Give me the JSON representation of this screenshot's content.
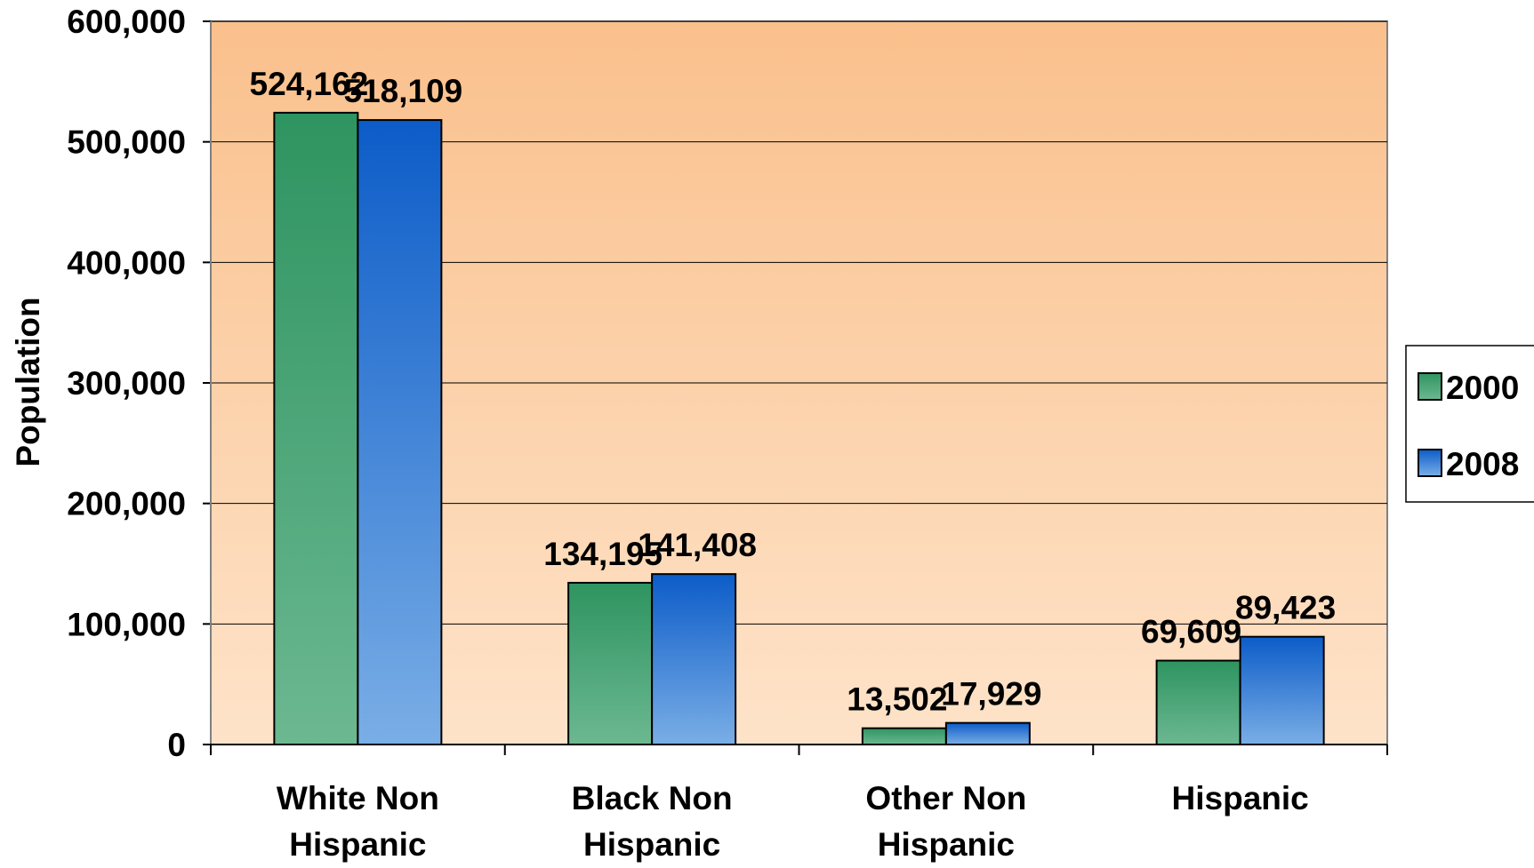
{
  "chart_data": {
    "type": "bar",
    "title": "",
    "xlabel": "",
    "ylabel": "Population",
    "ylim": [
      0,
      600000
    ],
    "yticks": [
      0,
      100000,
      200000,
      300000,
      400000,
      500000,
      600000
    ],
    "ytick_labels": [
      "0",
      "100,000",
      "200,000",
      "300,000",
      "400,000",
      "500,000",
      "600,000"
    ],
    "grid": "horizontal",
    "legend_position": "right",
    "categories": [
      [
        "White Non",
        "Hispanic"
      ],
      [
        "Black Non",
        "Hispanic"
      ],
      [
        "Other Non",
        "Hispanic"
      ],
      [
        "Hispanic"
      ]
    ],
    "series": [
      {
        "name": "2000",
        "values": [
          524162,
          134195,
          13502,
          69609
        ],
        "labels": [
          "524,162",
          "134,195",
          "13,502",
          "69,609"
        ],
        "color_top": "#2e9460",
        "color_bottom": "#6cb891"
      },
      {
        "name": "2008",
        "values": [
          518109,
          141408,
          17929,
          89423
        ],
        "labels": [
          "518,109",
          "141,408",
          "17,929",
          "89,423"
        ],
        "color_top": "#0c5cc8",
        "color_bottom": "#7aaee6"
      }
    ],
    "colors": {
      "plot_top": "#fac08c",
      "plot_bottom": "#fee3c9",
      "grid": "#000000",
      "border": "#808080"
    }
  }
}
